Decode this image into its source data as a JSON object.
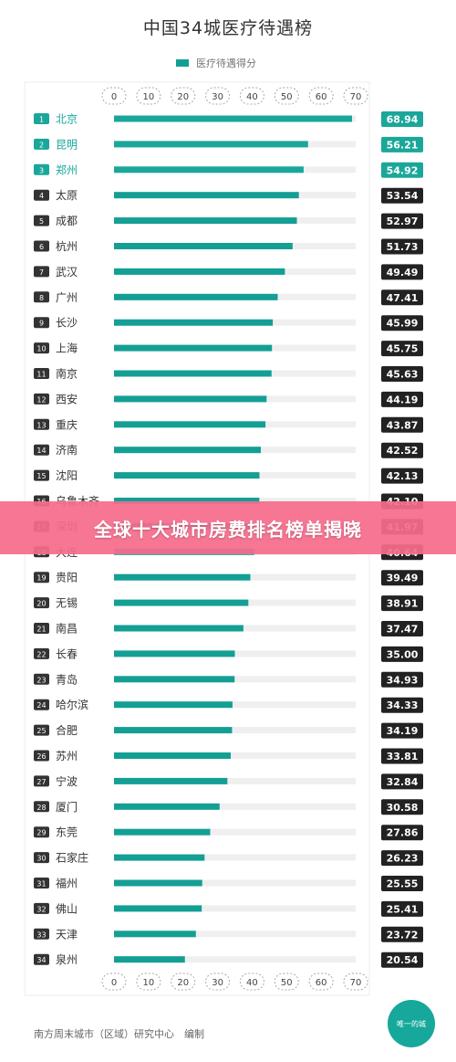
{
  "page": {
    "source_note": "南方周末城市（区域）研究中心　编制",
    "logo_text": "唯一的城",
    "banner_text": "全球十大城市房费排名榜单揭晓"
  },
  "chart_data": {
    "type": "bar",
    "orientation": "horizontal",
    "title": "中国34城医疗待遇榜",
    "legend": [
      "医疗待遇得分"
    ],
    "xlim": [
      0,
      70
    ],
    "ticks": [
      0,
      10,
      20,
      30,
      40,
      50,
      60,
      70
    ],
    "bar_color": "#139f94",
    "highlight_color": "#1aa79a",
    "label_dark_color": "#222222",
    "categories": [
      "北京",
      "昆明",
      "郑州",
      "太原",
      "成都",
      "杭州",
      "武汉",
      "广州",
      "长沙",
      "上海",
      "南京",
      "西安",
      "重庆",
      "济南",
      "沈阳",
      "乌鲁木齐",
      "深圳",
      "大连",
      "贵阳",
      "无锡",
      "南昌",
      "长春",
      "青岛",
      "哈尔滨",
      "合肥",
      "苏州",
      "宁波",
      "厦门",
      "东莞",
      "石家庄",
      "福州",
      "佛山",
      "天津",
      "泉州"
    ],
    "values": [
      68.94,
      56.21,
      54.92,
      53.54,
      52.97,
      51.73,
      49.49,
      47.41,
      45.99,
      45.75,
      45.63,
      44.19,
      43.87,
      42.52,
      42.13,
      42.1,
      41.97,
      40.64,
      39.49,
      38.91,
      37.47,
      35.0,
      34.93,
      34.33,
      34.19,
      33.81,
      32.84,
      30.58,
      27.86,
      26.23,
      25.55,
      25.41,
      23.72,
      20.54
    ],
    "value_labels": [
      "68.94",
      "56.21",
      "54.92",
      "53.54",
      "52.97",
      "51.73",
      "49.49",
      "47.41",
      "45.99",
      "45.75",
      "45.63",
      "44.19",
      "43.87",
      "42.52",
      "42.13",
      "42.10",
      "41.97",
      "40.64",
      "39.49",
      "38.91",
      "37.47",
      "35.00",
      "34.93",
      "34.33",
      "34.19",
      "33.81",
      "32.84",
      "30.58",
      "27.86",
      "26.23",
      "25.55",
      "25.41",
      "23.72",
      "20.54"
    ],
    "highlighted_top": 3
  }
}
